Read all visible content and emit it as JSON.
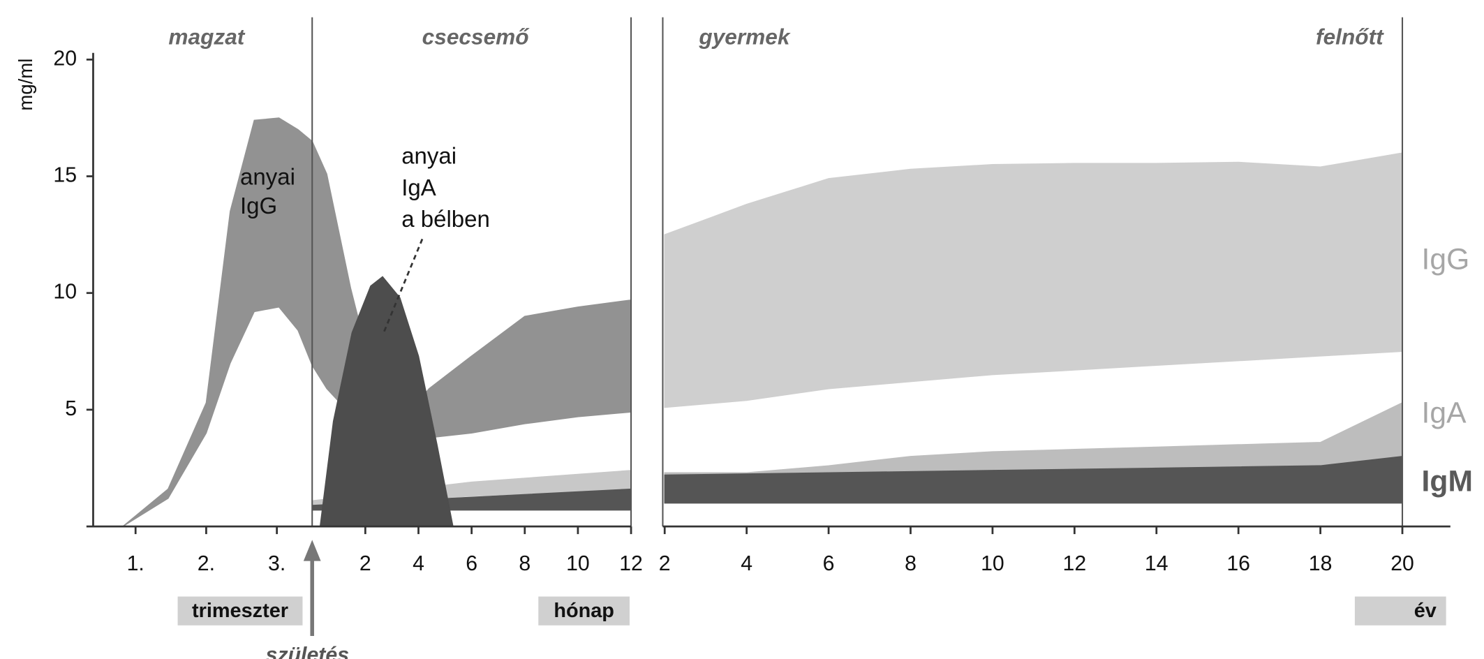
{
  "chart_data": {
    "type": "range-area",
    "y_label": "mg/ml",
    "ylim": [
      0,
      20
    ],
    "yticks": [
      5,
      10,
      15,
      20
    ],
    "periods": [
      "magzat",
      "csecsemő",
      "gyermek",
      "felnőtt"
    ],
    "birth_label": "születés",
    "annotations": [
      {
        "lines": [
          "anyai",
          "IgG"
        ]
      },
      {
        "lines": [
          "anyai",
          "IgA",
          "a bélben"
        ]
      }
    ],
    "series_labels": [
      {
        "text": "IgG",
        "color": "#a6a6a6"
      },
      {
        "text": "IgA",
        "color": "#a6a6a6"
      },
      {
        "text": "IgM",
        "color": "#5a5a5a"
      }
    ],
    "panels": [
      {
        "unit": "trimeszter",
        "xlim": [
          0.4,
          3.5
        ],
        "xticks": [
          {
            "value": 1,
            "label": "1."
          },
          {
            "value": 2,
            "label": "2."
          },
          {
            "value": 3,
            "label": "3."
          }
        ],
        "bands": [
          {
            "color": "#929292",
            "x": [
              0.82,
              1.46,
              2.0,
              2.34,
              2.68,
              3.03,
              3.3,
              3.5
            ],
            "high": [
              0,
              1.6,
              5.3,
              13.5,
              17.4,
              17.5,
              17.0,
              16.5
            ],
            "low": [
              0,
              1.2,
              4.0,
              7.0,
              9.2,
              9.4,
              8.4,
              6.9
            ]
          }
        ]
      },
      {
        "unit": "hónap",
        "xlim": [
          0,
          12
        ],
        "xticks": [
          2,
          4,
          6,
          8,
          10,
          12
        ],
        "bands": [
          {
            "color": "#929292",
            "x": [
              0,
              0.55,
              1.45,
              2.36,
              3.45,
              4.4,
              6,
              8,
              10,
              12
            ],
            "high": [
              16.5,
              15.1,
              10.2,
              6.1,
              4.6,
              5.9,
              7.3,
              9.0,
              9.4,
              9.7
            ],
            "low": [
              6.9,
              5.9,
              4.8,
              4.2,
              3.9,
              3.8,
              4.0,
              4.4,
              4.7,
              4.9
            ]
          },
          {
            "color": "#c8c8c8",
            "x": [
              0,
              6,
              12
            ],
            "high": [
              1.1,
              1.9,
              2.4
            ],
            "low": [
              0.9,
              1.3,
              1.6
            ]
          },
          {
            "color": "#555555",
            "x": [
              0,
              12
            ],
            "high": [
              0.9,
              1.6
            ],
            "low": [
              0.7,
              0.7
            ]
          },
          {
            "color": "#4d4d4d",
            "x": [
              0.3,
              0.8,
              1.5,
              2.2,
              2.65,
              3.3,
              4.0,
              4.7,
              5.3
            ],
            "high": [
              0,
              4.5,
              8.3,
              10.3,
              10.7,
              9.8,
              7.3,
              3.5,
              0
            ],
            "low": [
              0,
              0,
              0,
              0,
              0,
              0,
              0,
              0,
              0
            ]
          }
        ]
      },
      {
        "unit": "év",
        "xlim": [
          2,
          20
        ],
        "xticks": [
          2,
          4,
          6,
          8,
          10,
          12,
          14,
          16,
          18,
          20
        ],
        "bands": [
          {
            "color": "#cfcfcf",
            "x": [
              2,
              4,
              6,
              8,
              10,
              12,
              14,
              16,
              18,
              20
            ],
            "high": [
              12.5,
              13.8,
              14.9,
              15.3,
              15.5,
              15.55,
              15.55,
              15.6,
              15.4,
              16.0
            ],
            "low": [
              5.1,
              5.4,
              5.9,
              6.2,
              6.5,
              6.7,
              6.9,
              7.1,
              7.3,
              7.5
            ]
          },
          {
            "color": "#bdbdbd",
            "x": [
              2,
              4,
              6,
              8,
              10,
              12,
              14,
              16,
              18,
              20
            ],
            "high": [
              2.3,
              2.3,
              2.6,
              3.0,
              3.2,
              3.3,
              3.4,
              3.5,
              3.6,
              5.3
            ],
            "low": [
              2.2,
              2.25,
              2.3,
              2.35,
              2.4,
              2.45,
              2.5,
              2.55,
              2.6,
              3.0
            ]
          },
          {
            "color": "#555555",
            "x": [
              2,
              4,
              6,
              8,
              10,
              12,
              14,
              16,
              18,
              20
            ],
            "high": [
              2.2,
              2.25,
              2.3,
              2.35,
              2.4,
              2.45,
              2.5,
              2.55,
              2.6,
              3.0
            ],
            "low": [
              1.0,
              1.0,
              1.0,
              1.0,
              1.0,
              1.0,
              1.0,
              1.0,
              1.0,
              1.0
            ]
          }
        ]
      }
    ]
  }
}
